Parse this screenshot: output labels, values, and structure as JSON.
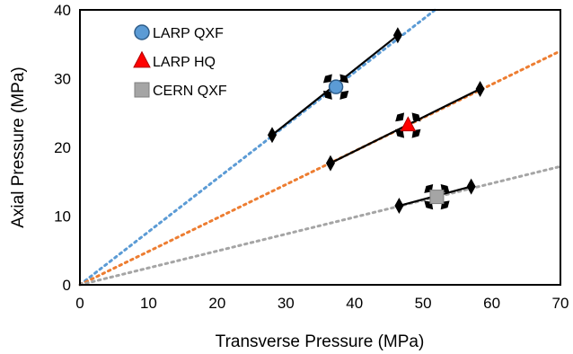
{
  "chart_data": {
    "type": "scatter",
    "xlabel": "Transverse Pressure (MPa)",
    "ylabel": "Axial Pressure (MPa)",
    "xlim": [
      0,
      70
    ],
    "ylim": [
      0,
      40
    ],
    "xticks": [
      0,
      10,
      20,
      30,
      40,
      50,
      60,
      70
    ],
    "yticks": [
      0,
      10,
      20,
      30,
      40
    ],
    "xtick_labels": [
      "0",
      "10",
      "20",
      "30",
      "40",
      "50",
      "60",
      "70"
    ],
    "ytick_labels": [
      "0",
      "10",
      "20",
      "30",
      "40"
    ],
    "grid": false,
    "legend": "top-left",
    "series": [
      {
        "name": "LARP QXF",
        "marker": "circle",
        "color": "#5b9bd5",
        "point": [
          37.3,
          28.8
        ],
        "range": [
          [
            28.0,
            21.8
          ],
          [
            46.3,
            36.3
          ]
        ],
        "trend": {
          "slope": 0.773,
          "color": "#5b9bd5"
        }
      },
      {
        "name": "LARP HQ",
        "marker": "triangle",
        "color": "#ff0000",
        "point": [
          47.8,
          23.2
        ],
        "range": [
          [
            36.5,
            17.7
          ],
          [
            58.3,
            28.5
          ]
        ],
        "trend": {
          "slope": 0.486,
          "color": "#ed7d31"
        }
      },
      {
        "name": "CERN QXF",
        "marker": "square",
        "color": "#a5a5a5",
        "point": [
          52.0,
          12.8
        ],
        "range": [
          [
            46.5,
            11.5
          ],
          [
            57.0,
            14.3
          ]
        ],
        "trend": {
          "slope": 0.246,
          "color": "#a5a5a5"
        }
      }
    ]
  }
}
